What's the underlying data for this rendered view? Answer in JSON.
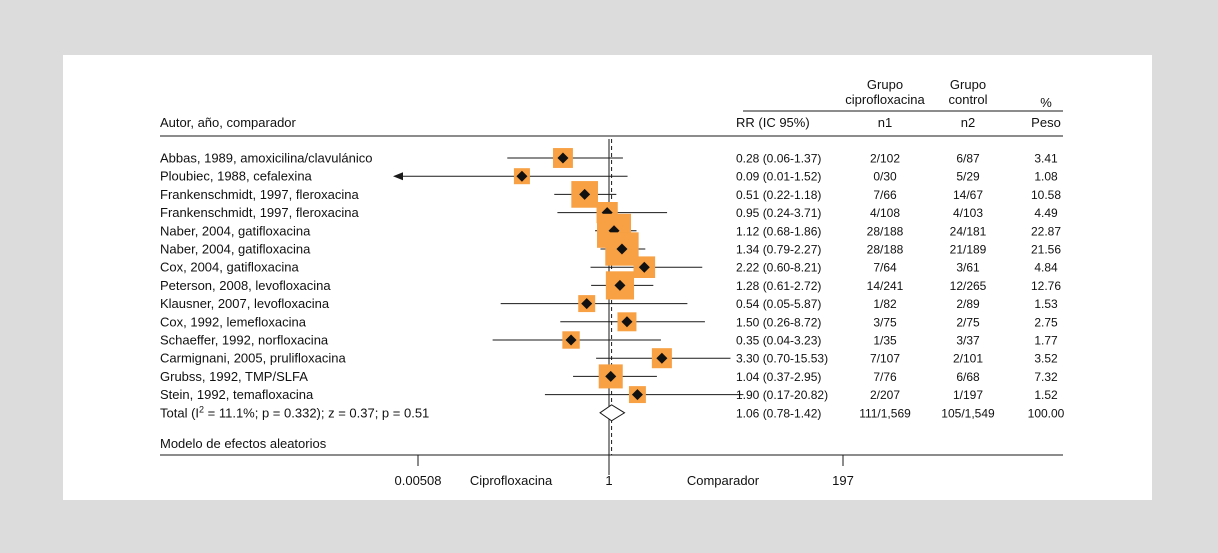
{
  "chart_data": {
    "type": "forest",
    "scale": "log",
    "xlim": [
      0.00508,
      197
    ],
    "ref_value": 1,
    "x_ticks": [
      {
        "value": 0.00508,
        "label": "0.00508"
      },
      {
        "value": 1,
        "label": "1"
      },
      {
        "value": 197,
        "label": "197"
      }
    ],
    "xlabel_left": "Ciprofloxacina",
    "xlabel_right": "Comparador",
    "header": {
      "study": "Autor, año, comparador",
      "rr": "RR (IC 95%)",
      "n1_group": [
        "Grupo",
        "ciprofloxacina"
      ],
      "n1": "n1",
      "n2_group": [
        "Grupo",
        "control"
      ],
      "n2": "n2",
      "weight_top": "%",
      "weight": "Peso"
    },
    "studies": [
      {
        "label": "Abbas, 1989, amoxicilina/clavulánico",
        "rr": 0.28,
        "lo": 0.06,
        "hi": 1.37,
        "rr_text": "0.28 (0.06-1.37)",
        "n1": "2/102",
        "n2": "6/87",
        "weight": "3.41"
      },
      {
        "label": "Ploubiec, 1988, cefalexina",
        "rr": 0.09,
        "lo": 0.01,
        "hi": 1.52,
        "rr_text": "0.09 (0.01-1.52)",
        "n1": "0/30",
        "n2": "5/29",
        "weight": "1.08"
      },
      {
        "label": "Frankenschmidt, 1997, fleroxacina",
        "rr": 0.51,
        "lo": 0.22,
        "hi": 1.18,
        "rr_text": "0.51 (0.22-1.18)",
        "n1": "7/66",
        "n2": "14/67",
        "weight": "10.58"
      },
      {
        "label": "Frankenschmidt, 1997, fleroxacina",
        "rr": 0.95,
        "lo": 0.24,
        "hi": 3.71,
        "rr_text": "0.95 (0.24-3.71)",
        "n1": "4/108",
        "n2": "4/103",
        "weight": "4.49"
      },
      {
        "label": "Naber, 2004, gatifloxacina",
        "rr": 1.12,
        "lo": 0.68,
        "hi": 1.86,
        "rr_text": "1.12 (0.68-1.86)",
        "n1": "28/188",
        "n2": "24/181",
        "weight": "22.87"
      },
      {
        "label": "Naber, 2004, gatifloxacina",
        "rr": 1.34,
        "lo": 0.79,
        "hi": 2.27,
        "rr_text": "1.34 (0.79-2.27)",
        "n1": "28/188",
        "n2": "21/189",
        "weight": "21.56"
      },
      {
        "label": "Cox, 2004, gatifloxacina",
        "rr": 2.22,
        "lo": 0.6,
        "hi": 8.21,
        "rr_text": "2.22 (0.60-8.21)",
        "n1": "7/64",
        "n2": "3/61",
        "weight": "4.84"
      },
      {
        "label": "Peterson, 2008, levofloxacina",
        "rr": 1.28,
        "lo": 0.61,
        "hi": 2.72,
        "rr_text": "1.28 (0.61-2.72)",
        "n1": "14/241",
        "n2": "12/265",
        "weight": "12.76"
      },
      {
        "label": "Klausner, 2007, levofloxacina",
        "rr": 0.54,
        "lo": 0.05,
        "hi": 5.87,
        "rr_text": "0.54 (0.05-5.87)",
        "n1": "1/82",
        "n2": "2/89",
        "weight": "1.53"
      },
      {
        "label": "Cox, 1992, lemefloxacina",
        "rr": 1.5,
        "lo": 0.26,
        "hi": 8.72,
        "rr_text": "1.50 (0.26-8.72)",
        "n1": "3/75",
        "n2": "2/75",
        "weight": "2.75"
      },
      {
        "label": "Schaeffer, 1992, norfloxacina",
        "rr": 0.35,
        "lo": 0.04,
        "hi": 3.23,
        "rr_text": "0.35 (0.04-3.23)",
        "n1": "1/35",
        "n2": "3/37",
        "weight": "1.77"
      },
      {
        "label": "Carmignani, 2005, prulifloxacina",
        "rr": 3.3,
        "lo": 0.7,
        "hi": 15.53,
        "rr_text": "3.30 (0.70-15.53)",
        "n1": "7/107",
        "n2": "2/101",
        "weight": "3.52"
      },
      {
        "label": "Grubss, 1992, TMP/SLFA",
        "rr": 1.04,
        "lo": 0.37,
        "hi": 2.95,
        "rr_text": "1.04 (0.37-2.95)",
        "n1": "7/76",
        "n2": "6/68",
        "weight": "7.32"
      },
      {
        "label": "Stein, 1992, temafloxacina",
        "rr": 1.9,
        "lo": 0.17,
        "hi": 20.82,
        "rr_text": "1.90 (0.17-20.82)",
        "n1": "2/207",
        "n2": "1/197",
        "weight": "1.52"
      }
    ],
    "total": {
      "label_prefix": "Total (I",
      "label_sup": "2",
      "label_suffix": " = 11.1%; p = 0.332); z = 0.37; p = 0.51",
      "rr": 1.06,
      "lo": 0.78,
      "hi": 1.42,
      "rr_text": "1.06 (0.78-1.42)",
      "n1": "111/1,569",
      "n2": "105/1,549",
      "weight": "100.00"
    },
    "model_label": "Modelo de efectos aleatorios",
    "colors": {
      "box": "#f7a044",
      "line": "#1a1a1a",
      "text": "#111111"
    }
  }
}
